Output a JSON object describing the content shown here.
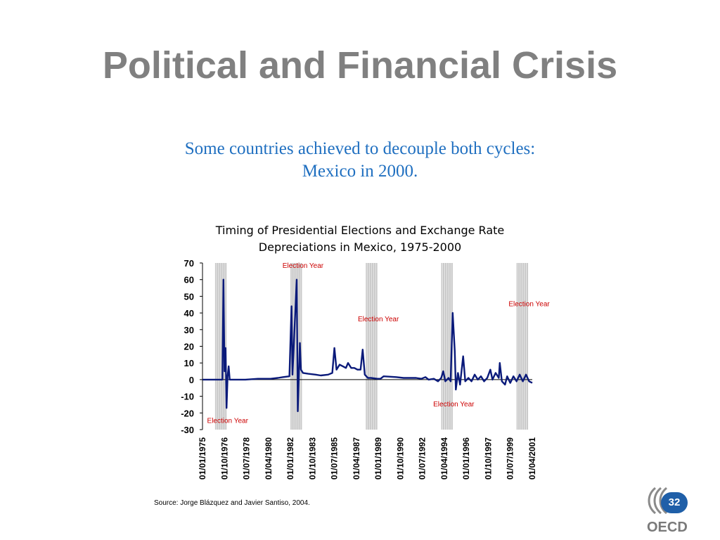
{
  "slide": {
    "title": "Political  and Financial Crisis",
    "subtitle_line1": "Some countries achieved to decouple both cycles:",
    "subtitle_line2": "Mexico in 2000.",
    "source": "Source: Jorge Blázquez and Javier Santiso, 2004.",
    "page_number": "32",
    "logo_text": "OECD"
  },
  "chart_data": {
    "type": "line",
    "title_line1": "Timing of Presidential Elections and Exchange Rate",
    "title_line2": "Depreciations in Mexico, 1975-2000",
    "ylim": [
      -30,
      70
    ],
    "yticks": [
      70,
      60,
      50,
      40,
      30,
      20,
      10,
      0,
      -10,
      -20,
      -30
    ],
    "xlim": [
      "1975-01",
      "2001-04"
    ],
    "xtick_labels": [
      "01/01/1975",
      "01/10/1976",
      "01/07/1978",
      "01/04/1980",
      "01/01/1982",
      "01/10/1983",
      "01/07/1985",
      "01/04/1987",
      "01/01/1989",
      "01/10/1990",
      "01/07/1992",
      "01/04/1994",
      "01/01/1996",
      "01/10/1997",
      "01/07/1999",
      "01/04/2001"
    ],
    "xtick_dates": [
      "1975-01",
      "1976-10",
      "1978-07",
      "1980-04",
      "1982-01",
      "1983-10",
      "1985-07",
      "1987-04",
      "1989-01",
      "1990-10",
      "1992-07",
      "1994-04",
      "1996-01",
      "1997-10",
      "1999-07",
      "2001-04"
    ],
    "election_periods": [
      {
        "start": "1976-01",
        "end": "1976-12"
      },
      {
        "start": "1982-01",
        "end": "1982-12"
      },
      {
        "start": "1988-01",
        "end": "1988-12"
      },
      {
        "start": "1994-01",
        "end": "1994-12"
      },
      {
        "start": "2000-01",
        "end": "2000-12"
      }
    ],
    "annotations": [
      {
        "text": "Election Year",
        "date": "1977-01",
        "y": -26
      },
      {
        "text": "Election Year",
        "date": "1983-01",
        "y": 67
      },
      {
        "text": "Election Year",
        "date": "1989-01",
        "y": 35
      },
      {
        "text": "Election Year",
        "date": "1995-01",
        "y": -16
      },
      {
        "text": "Election Year",
        "date": "2001-01",
        "y": 44
      }
    ],
    "grid": false,
    "colors": {
      "line": "#0a1a7a",
      "band": "#c8c8c8",
      "annotation": "#cc0000",
      "axis": "#000000"
    },
    "series": [
      {
        "points": [
          [
            "1975-01",
            0
          ],
          [
            "1976-08",
            0
          ],
          [
            "1976-09",
            60
          ],
          [
            "1976-10",
            5
          ],
          [
            "1976-11",
            19
          ],
          [
            "1976-12",
            -17
          ],
          [
            "1977-01",
            2
          ],
          [
            "1977-02",
            8
          ],
          [
            "1977-03",
            0
          ],
          [
            "1978-06",
            0
          ],
          [
            "1979-06",
            0.5
          ],
          [
            "1980-06",
            0.5
          ],
          [
            "1981-01",
            1
          ],
          [
            "1981-06",
            1.5
          ],
          [
            "1981-12",
            2
          ],
          [
            "1982-02",
            44
          ],
          [
            "1982-03",
            3
          ],
          [
            "1982-07",
            60
          ],
          [
            "1982-08",
            -19
          ],
          [
            "1982-10",
            22
          ],
          [
            "1982-11",
            6
          ],
          [
            "1983-01",
            4
          ],
          [
            "1983-06",
            3.5
          ],
          [
            "1984-01",
            3
          ],
          [
            "1984-06",
            2.5
          ],
          [
            "1985-01",
            3
          ],
          [
            "1985-05",
            4
          ],
          [
            "1985-07",
            19
          ],
          [
            "1985-09",
            6
          ],
          [
            "1985-12",
            9
          ],
          [
            "1986-03",
            8
          ],
          [
            "1986-06",
            7
          ],
          [
            "1986-08",
            10
          ],
          [
            "1986-11",
            7
          ],
          [
            "1987-02",
            7
          ],
          [
            "1987-05",
            6
          ],
          [
            "1987-08",
            6
          ],
          [
            "1987-10",
            18
          ],
          [
            "1987-12",
            3
          ],
          [
            "1988-03",
            1
          ],
          [
            "1988-06",
            1
          ],
          [
            "1988-12",
            0.5
          ],
          [
            "1989-03",
            0.5
          ],
          [
            "1989-06",
            2
          ],
          [
            "1990-06",
            1.5
          ],
          [
            "1991-01",
            1
          ],
          [
            "1991-06",
            1
          ],
          [
            "1992-01",
            1
          ],
          [
            "1992-06",
            0.5
          ],
          [
            "1992-10",
            1.5
          ],
          [
            "1993-01",
            0
          ],
          [
            "1993-06",
            0.5
          ],
          [
            "1993-10",
            -1
          ],
          [
            "1994-01",
            1
          ],
          [
            "1994-03",
            5
          ],
          [
            "1994-05",
            -1
          ],
          [
            "1994-08",
            1
          ],
          [
            "1994-10",
            -1
          ],
          [
            "1994-12",
            40
          ],
          [
            "1995-02",
            17
          ],
          [
            "1995-03",
            -6
          ],
          [
            "1995-05",
            4
          ],
          [
            "1995-07",
            -3
          ],
          [
            "1995-10",
            14
          ],
          [
            "1995-12",
            -1
          ],
          [
            "1996-03",
            1
          ],
          [
            "1996-06",
            -1
          ],
          [
            "1996-09",
            3
          ],
          [
            "1996-12",
            0
          ],
          [
            "1997-03",
            2
          ],
          [
            "1997-06",
            -1
          ],
          [
            "1997-09",
            1
          ],
          [
            "1997-12",
            6
          ],
          [
            "1998-02",
            0
          ],
          [
            "1998-05",
            4
          ],
          [
            "1998-08",
            1
          ],
          [
            "1998-09",
            10
          ],
          [
            "1998-11",
            -1
          ],
          [
            "1999-02",
            -3
          ],
          [
            "1999-04",
            2
          ],
          [
            "1999-07",
            -2
          ],
          [
            "1999-10",
            2
          ],
          [
            "2000-01",
            -1
          ],
          [
            "2000-04",
            3
          ],
          [
            "2000-07",
            -1
          ],
          [
            "2000-10",
            3
          ],
          [
            "2001-01",
            -1
          ],
          [
            "2001-04",
            -2
          ]
        ]
      }
    ]
  }
}
